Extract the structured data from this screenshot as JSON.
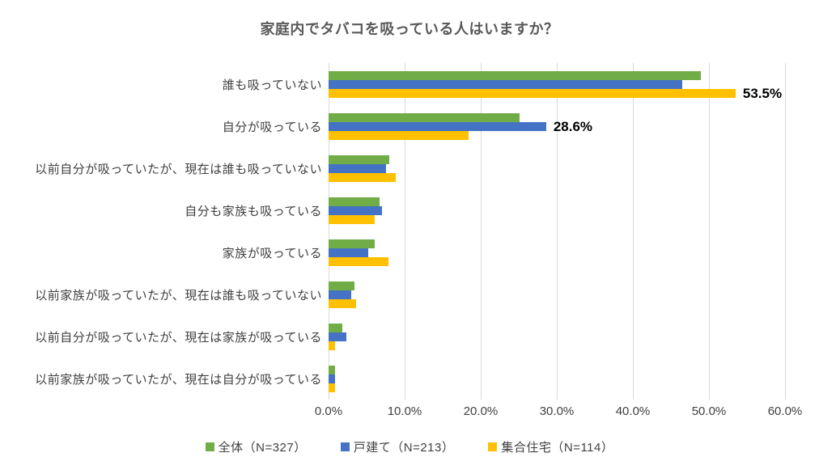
{
  "title": "家庭内でタバコを吸っている人はいますか？",
  "colors": {
    "series_green": "#70AD47",
    "series_blue": "#4472C4",
    "series_yellow": "#FFC000",
    "gridline": "#D9D9D9",
    "title_text": "#595959",
    "axis_text": "#404040",
    "data_label_text": "#000000"
  },
  "chart_data": {
    "type": "bar",
    "orientation": "horizontal",
    "title": "家庭内でタバコを吸っている人はいますか？",
    "categories": [
      "誰も吸っていない",
      "自分が吸っている",
      "以前自分が吸っていたが、現在は誰も吸っていない",
      "自分も家族も吸っている",
      "家族が吸っている",
      "以前家族が吸っていたが、現在は誰も吸っていない",
      "以前自分が吸っていたが、現在は家族が吸っている",
      "以前家族が吸っていたが、現在は自分が吸っている"
    ],
    "series": [
      {
        "name": "全体（N=327）",
        "color": "#70AD47",
        "values": [
          48.9,
          25.1,
          8.0,
          6.7,
          6.1,
          3.4,
          1.8,
          0.9
        ]
      },
      {
        "name": "戸建て（N=213）",
        "color": "#4472C4",
        "values": [
          46.5,
          28.6,
          7.5,
          7.0,
          5.2,
          3.0,
          2.3,
          0.9
        ]
      },
      {
        "name": "集合住宅（N=114）",
        "color": "#FFC000",
        "values": [
          53.5,
          18.4,
          8.8,
          6.1,
          7.9,
          3.6,
          0.9,
          0.9
        ]
      }
    ],
    "data_labels": [
      {
        "category_index": 0,
        "series_index": 2,
        "text": "53.5%"
      },
      {
        "category_index": 1,
        "series_index": 1,
        "text": "28.6%"
      }
    ],
    "x_ticks": [
      "0.0%",
      "10.0%",
      "20.0%",
      "30.0%",
      "40.0%",
      "50.0%",
      "60.0%"
    ],
    "xlim": [
      0,
      60
    ],
    "grid": "vertical-only",
    "legend_position": "bottom"
  }
}
